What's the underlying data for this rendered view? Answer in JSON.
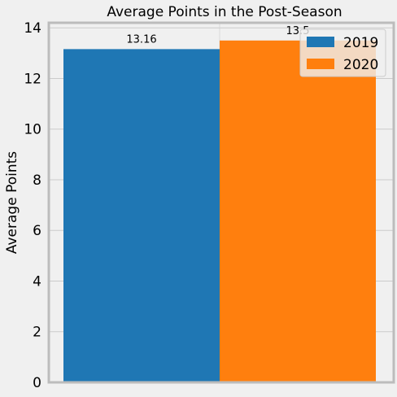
{
  "chart_data": {
    "type": "bar",
    "title": "Average Points in the Post-Season",
    "ylabel": "Average Points",
    "xlabel": "",
    "ylim": [
      0,
      14.2
    ],
    "yticks": [
      0,
      2,
      4,
      6,
      8,
      10,
      12,
      14
    ],
    "grid": true,
    "legend_position": "top-right",
    "series": [
      {
        "name": "2019",
        "value": 13.16,
        "label": "13.16",
        "color": "#1f77b4"
      },
      {
        "name": "2020",
        "value": 13.5,
        "label": "13.5",
        "color": "#ff7f0e"
      }
    ]
  }
}
